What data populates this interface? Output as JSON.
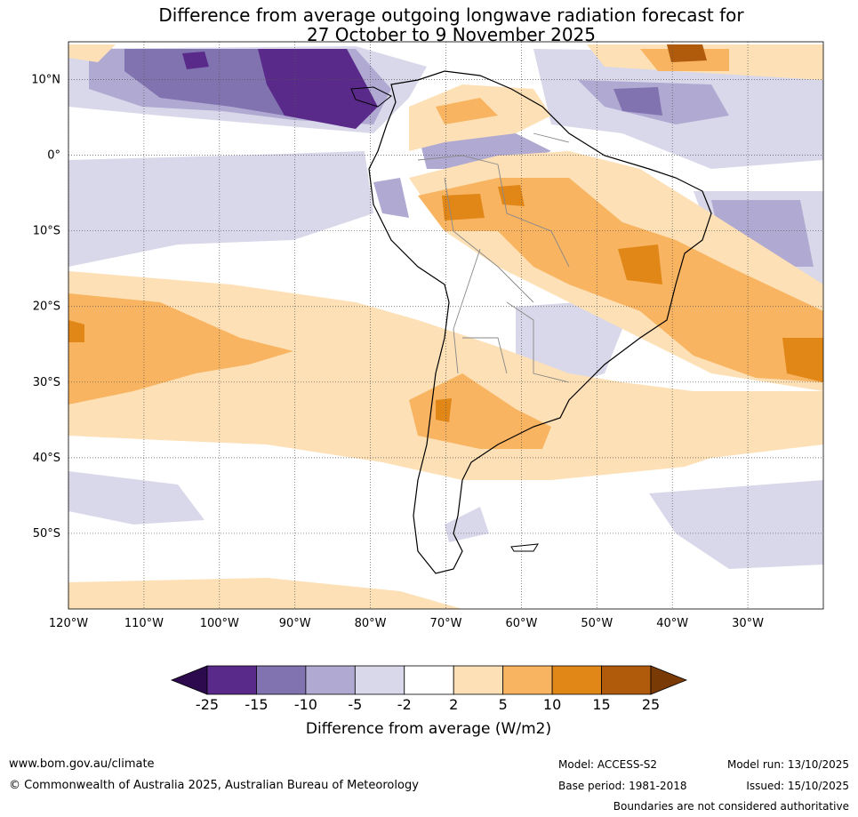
{
  "title": {
    "line1": "Difference from average outgoing longwave radiation forecast for",
    "line2": "27 October to 9 November 2025"
  },
  "axes": {
    "lon_labels": [
      "120°W",
      "110°W",
      "100°W",
      "90°W",
      "80°W",
      "70°W",
      "60°W",
      "50°W",
      "40°W",
      "30°W"
    ],
    "lat_labels": [
      "10°N",
      "0°",
      "10°S",
      "20°S",
      "30°S",
      "40°S",
      "50°S"
    ],
    "lon_range": [
      -120,
      -20
    ],
    "lat_range": [
      -60,
      15
    ]
  },
  "colorbar": {
    "label": "Difference from average (W/m2)",
    "ticks": [
      "-25",
      "-15",
      "-10",
      "-5",
      "-2",
      "2",
      "5",
      "10",
      "15",
      "25"
    ],
    "colors": [
      "#2d0a4e",
      "#5a2a8a",
      "#8073b0",
      "#b0a9d2",
      "#d9d8ea",
      "#ffffff",
      "#fde0b5",
      "#f8b461",
      "#e08718",
      "#b05a0c",
      "#7a3a06"
    ]
  },
  "footer": {
    "website": "www.bom.gov.au/climate",
    "copyright": "© Commonwealth of Australia 2025, Australian Bureau of Meteorology",
    "model": "Model: ACCESS-S2",
    "model_run": "Model run: 13/10/2025",
    "base_period": "Base period: 1981-2018",
    "issued": "Issued: 15/10/2025",
    "disclaimer": "Boundaries are not considered authoritative"
  }
}
